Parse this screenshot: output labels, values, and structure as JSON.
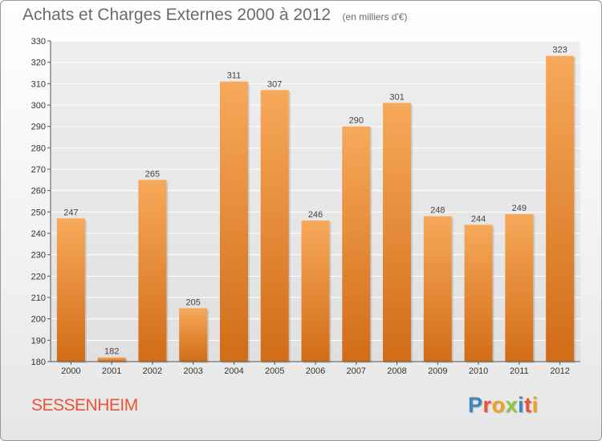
{
  "header": {
    "title": "Achats et Charges Externes 2000 à 2012",
    "unit": "(en milliers d'€)"
  },
  "footer": {
    "city": "SESSENHEIM",
    "brand_letters": [
      "P",
      "r",
      "o",
      "x",
      "i",
      "t",
      "i"
    ],
    "brand_colors": [
      "#3a86c8",
      "#e8533a",
      "#f0a21c",
      "#8dc63f",
      "#3a86c8",
      "#e8533a",
      "#f0a21c"
    ]
  },
  "colors": {
    "bar_top": "#f7a95a",
    "bar_bottom": "#d16c17",
    "title": "#6b6b6b",
    "city": "#e8533a"
  },
  "chart_data": {
    "type": "bar",
    "title": "Achats et Charges Externes 2000 à 2012",
    "subtitle": "(en milliers d'€)",
    "categories": [
      "2000",
      "2001",
      "2002",
      "2003",
      "2004",
      "2005",
      "2006",
      "2007",
      "2008",
      "2009",
      "2010",
      "2011",
      "2012"
    ],
    "values": [
      247,
      182,
      265,
      205,
      311,
      307,
      246,
      290,
      301,
      248,
      244,
      249,
      323
    ],
    "ylim": [
      180,
      330
    ],
    "yticks": [
      180,
      190,
      200,
      210,
      220,
      230,
      240,
      250,
      260,
      270,
      280,
      290,
      300,
      310,
      320,
      330
    ],
    "grid": true,
    "xlabel": "",
    "ylabel": ""
  }
}
